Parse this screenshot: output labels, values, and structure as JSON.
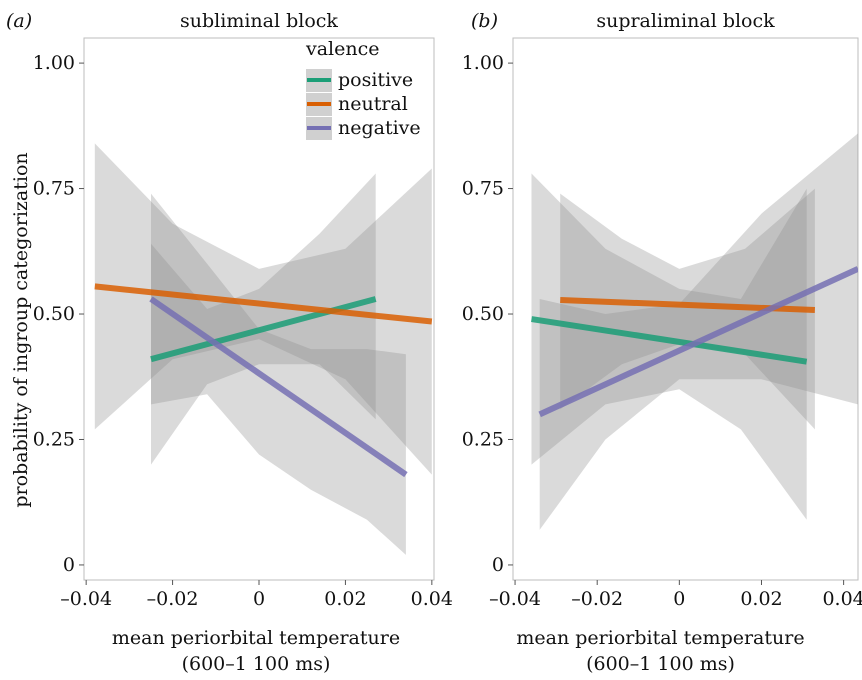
{
  "figure": {
    "ylabel": "probability of ingroup categorization"
  },
  "chart_data": [
    {
      "type": "line",
      "panel_label": "(a)",
      "title": "subliminal block",
      "xlabel_line1": "mean periorbital temperature",
      "xlabel_line2": "(600–1 100 ms)",
      "ylabel": "probability of ingroup categorization",
      "xlim": [
        -0.0405,
        0.0405
      ],
      "ylim": [
        -0.03,
        1.05
      ],
      "x_ticks": [
        -0.04,
        -0.02,
        0,
        0.02,
        0.04
      ],
      "x_tick_labels": [
        "–0.04",
        "–0.02",
        "0",
        "0.02",
        "0.04"
      ],
      "y_ticks": [
        0,
        0.25,
        0.5,
        0.75,
        1.0
      ],
      "y_tick_labels": [
        "0",
        "0.25",
        "0.50",
        "0.75",
        "1.00"
      ],
      "grid": false,
      "legend": {
        "title": "valence",
        "position": "top-right"
      },
      "series": [
        {
          "name": "positive",
          "color": "#1b9e77",
          "x": [
            -0.025,
            0.027
          ],
          "y": [
            0.41,
            0.53
          ],
          "ci": {
            "x": [
              -0.025,
              -0.012,
              0,
              0.014,
              0.027
            ],
            "lower": [
              0.2,
              0.36,
              0.4,
              0.4,
              0.29
            ],
            "upper": [
              0.64,
              0.51,
              0.55,
              0.66,
              0.78
            ]
          }
        },
        {
          "name": "neutral",
          "color": "#d95f02",
          "x": [
            -0.038,
            0.04
          ],
          "y": [
            0.555,
            0.485
          ],
          "ci": {
            "x": [
              -0.038,
              -0.02,
              0,
              0.02,
              0.04
            ],
            "lower": [
              0.27,
              0.41,
              0.45,
              0.37,
              0.18
            ],
            "upper": [
              0.84,
              0.68,
              0.59,
              0.63,
              0.79
            ]
          }
        },
        {
          "name": "negative",
          "color": "#7570b3",
          "x": [
            -0.025,
            0.034
          ],
          "y": [
            0.53,
            0.18
          ],
          "ci": {
            "x": [
              -0.025,
              -0.012,
              0,
              0.012,
              0.025,
              0.034
            ],
            "lower": [
              0.32,
              0.34,
              0.22,
              0.15,
              0.09,
              0.02
            ],
            "upper": [
              0.74,
              0.6,
              0.47,
              0.43,
              0.43,
              0.42
            ]
          }
        }
      ]
    },
    {
      "type": "line",
      "panel_label": "(b)",
      "title": "supraliminal block",
      "xlabel_line1": "mean periorbital temperature",
      "xlabel_line2": "(600–1 100 ms)",
      "xlim": [
        -0.0405,
        0.0435
      ],
      "ylim": [
        -0.03,
        1.05
      ],
      "x_ticks": [
        -0.04,
        -0.02,
        0,
        0.02,
        0.04
      ],
      "x_tick_labels": [
        "–0.04",
        "–0.02",
        "0",
        "0.02",
        "0.04"
      ],
      "y_ticks": [
        0,
        0.25,
        0.5,
        0.75,
        1.0
      ],
      "y_tick_labels": [
        "0",
        "0.25",
        "0.50",
        "0.75",
        "1.00"
      ],
      "grid": false,
      "series": [
        {
          "name": "positive",
          "color": "#1b9e77",
          "x": [
            -0.036,
            0.031
          ],
          "y": [
            0.49,
            0.405
          ],
          "ci": {
            "x": [
              -0.036,
              -0.018,
              0,
              0.015,
              0.031
            ],
            "lower": [
              0.2,
              0.32,
              0.35,
              0.27,
              0.09
            ],
            "upper": [
              0.78,
              0.63,
              0.55,
              0.53,
              0.75
            ]
          }
        },
        {
          "name": "neutral",
          "color": "#d95f02",
          "x": [
            -0.029,
            0.033
          ],
          "y": [
            0.528,
            0.508
          ],
          "ci": {
            "x": [
              -0.029,
              -0.014,
              0,
              0.016,
              0.033
            ],
            "lower": [
              0.31,
              0.4,
              0.44,
              0.42,
              0.27
            ],
            "upper": [
              0.74,
              0.65,
              0.59,
              0.63,
              0.75
            ]
          }
        },
        {
          "name": "negative",
          "color": "#7570b3",
          "x": [
            -0.034,
            0.0435
          ],
          "y": [
            0.3,
            0.59
          ],
          "ci": {
            "x": [
              -0.034,
              -0.018,
              0,
              0.02,
              0.0435
            ],
            "lower": [
              0.07,
              0.25,
              0.37,
              0.37,
              0.32
            ],
            "upper": [
              0.53,
              0.5,
              0.52,
              0.7,
              0.86
            ]
          }
        }
      ]
    }
  ]
}
